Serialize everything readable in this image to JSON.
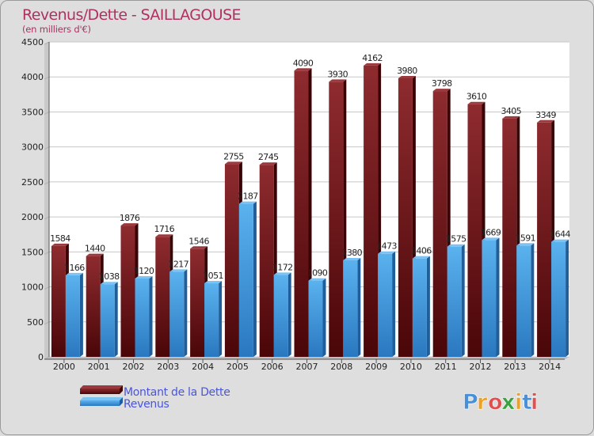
{
  "chart_data": {
    "type": "bar",
    "title": "Revenus/Dette - SAILLAGOUSE",
    "subtitle": "(en milliers d'€)",
    "categories": [
      "2000",
      "2001",
      "2002",
      "2003",
      "2004",
      "2005",
      "2006",
      "2007",
      "2008",
      "2009",
      "2010",
      "2011",
      "2012",
      "2013",
      "2014"
    ],
    "series": [
      {
        "name": "Montant de la Dette",
        "color": "#7a1e22",
        "values": [
          1584,
          1440,
          1876,
          1716,
          1546,
          2755,
          2745,
          4090,
          3930,
          4162,
          3980,
          3798,
          3610,
          3405,
          3349
        ]
      },
      {
        "name": "Revenus",
        "color": "#4aa3e6",
        "values": [
          1166,
          1038,
          1120,
          1217,
          1051,
          2187,
          1172,
          1090,
          1380,
          1473,
          1406,
          1575,
          1669,
          1591,
          1644
        ]
      }
    ],
    "ylim": [
      0,
      4500
    ],
    "yticks": [
      0,
      500,
      1000,
      1500,
      2000,
      2500,
      3000,
      3500,
      4000,
      4500
    ],
    "grid": true,
    "legend_position": "bottom-left"
  },
  "logo": {
    "letters": [
      "P",
      "r",
      "o",
      "x",
      "i",
      "t",
      "i"
    ],
    "colors": [
      "#4a90d9",
      "#f0a020",
      "#e05050",
      "#3aa040",
      "#f0a020",
      "#4a90d9",
      "#e05050"
    ]
  }
}
